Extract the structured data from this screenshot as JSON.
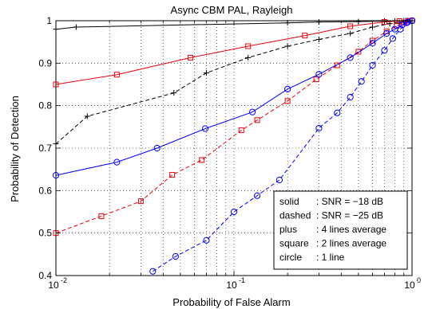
{
  "chart_data": {
    "type": "line",
    "title": "Async CBM PAL, Rayleigh",
    "xlabel": "Probability of False Alarm",
    "ylabel": "Probability of Detection",
    "xscale": "log",
    "xlim": [
      0.01,
      1
    ],
    "ylim": [
      0.4,
      1
    ],
    "grid": true,
    "x_ticks": [
      {
        "value": 0.01,
        "label": "10",
        "exp": "-2"
      },
      {
        "value": 0.1,
        "label": "10",
        "exp": "-1"
      },
      {
        "value": 1,
        "label": "10",
        "exp": "0"
      }
    ],
    "y_ticks": [
      {
        "value": 0.4,
        "label": "0.4"
      },
      {
        "value": 0.5,
        "label": "0.5"
      },
      {
        "value": 0.6,
        "label": "0.6"
      },
      {
        "value": 0.7,
        "label": "0.7"
      },
      {
        "value": 0.8,
        "label": "0.8"
      },
      {
        "value": 0.9,
        "label": "0.9"
      },
      {
        "value": 1,
        "label": "1"
      }
    ],
    "legend_position": "bottom-right",
    "legend": [
      {
        "key": "solid",
        "desc": ": SNR = −18 dB"
      },
      {
        "key": "dashed",
        "desc": ": SNR = −25 dB"
      },
      {
        "key": "plus",
        "desc": ": 4 lines average"
      },
      {
        "key": "square",
        "desc": ": 2 lines average"
      },
      {
        "key": "circle",
        "desc": ": 1 line"
      }
    ],
    "series": [
      {
        "color": "#000000",
        "dash": "solid",
        "marker": "plus",
        "points": [
          [
            0.01,
            0.98
          ],
          [
            0.013,
            0.985
          ],
          [
            0.2,
            0.995
          ],
          [
            0.3,
            0.997
          ],
          [
            0.5,
            0.998
          ],
          [
            0.7,
            0.999
          ],
          [
            0.8,
            0.999
          ],
          [
            0.9,
            1.0
          ],
          [
            0.95,
            1.0
          ],
          [
            1.0,
            1.0
          ]
        ]
      },
      {
        "color": "#000000",
        "dash": "dashed",
        "marker": "plus",
        "points": [
          [
            0.01,
            0.71
          ],
          [
            0.015,
            0.775
          ],
          [
            0.046,
            0.83
          ],
          [
            0.07,
            0.877
          ],
          [
            0.12,
            0.913
          ],
          [
            0.2,
            0.94
          ],
          [
            0.3,
            0.956
          ],
          [
            0.45,
            0.97
          ],
          [
            0.6,
            0.985
          ],
          [
            0.75,
            0.993
          ],
          [
            0.85,
            0.996
          ],
          [
            0.93,
            0.998
          ],
          [
            1.0,
            1.0
          ]
        ]
      },
      {
        "color": "#e8000b",
        "dash": "solid",
        "marker": "square",
        "points": [
          [
            0.01,
            0.85
          ],
          [
            0.022,
            0.873
          ],
          [
            0.057,
            0.913
          ],
          [
            0.12,
            0.94
          ],
          [
            0.25,
            0.965
          ],
          [
            0.45,
            0.987
          ],
          [
            0.7,
            0.997
          ],
          [
            0.85,
            0.999
          ],
          [
            0.95,
            1.0
          ],
          [
            1.0,
            1.0
          ]
        ]
      },
      {
        "color": "#e8000b",
        "dash": "dashed",
        "marker": "square",
        "points": [
          [
            0.01,
            0.5
          ],
          [
            0.018,
            0.54
          ],
          [
            0.03,
            0.575
          ],
          [
            0.045,
            0.637
          ],
          [
            0.066,
            0.672
          ],
          [
            0.11,
            0.742
          ],
          [
            0.135,
            0.766
          ],
          [
            0.2,
            0.811
          ],
          [
            0.29,
            0.862
          ],
          [
            0.38,
            0.895
          ],
          [
            0.5,
            0.927
          ],
          [
            0.6,
            0.953
          ],
          [
            0.72,
            0.975
          ],
          [
            0.82,
            0.988
          ],
          [
            0.9,
            0.995
          ],
          [
            1.0,
            1.0
          ]
        ]
      },
      {
        "color": "#0000ff",
        "dash": "solid",
        "marker": "circle",
        "points": [
          [
            0.01,
            0.636
          ],
          [
            0.022,
            0.667
          ],
          [
            0.037,
            0.7
          ],
          [
            0.069,
            0.746
          ],
          [
            0.127,
            0.785
          ],
          [
            0.2,
            0.839
          ],
          [
            0.3,
            0.874
          ],
          [
            0.45,
            0.913
          ],
          [
            0.6,
            0.947
          ],
          [
            0.72,
            0.97
          ],
          [
            0.8,
            0.98
          ],
          [
            0.88,
            0.99
          ],
          [
            0.95,
            0.997
          ],
          [
            1.0,
            1.0
          ]
        ]
      },
      {
        "color": "#0000ff",
        "dash": "dashed",
        "marker": "circle",
        "points": [
          [
            0.035,
            0.41
          ],
          [
            0.047,
            0.445
          ],
          [
            0.07,
            0.483
          ],
          [
            0.1,
            0.55
          ],
          [
            0.135,
            0.588
          ],
          [
            0.18,
            0.625
          ],
          [
            0.3,
            0.747
          ],
          [
            0.38,
            0.783
          ],
          [
            0.45,
            0.82
          ],
          [
            0.52,
            0.857
          ],
          [
            0.6,
            0.895
          ],
          [
            0.7,
            0.93
          ],
          [
            0.78,
            0.958
          ],
          [
            0.86,
            0.98
          ],
          [
            0.93,
            0.995
          ],
          [
            1.0,
            1.0
          ]
        ]
      }
    ]
  }
}
